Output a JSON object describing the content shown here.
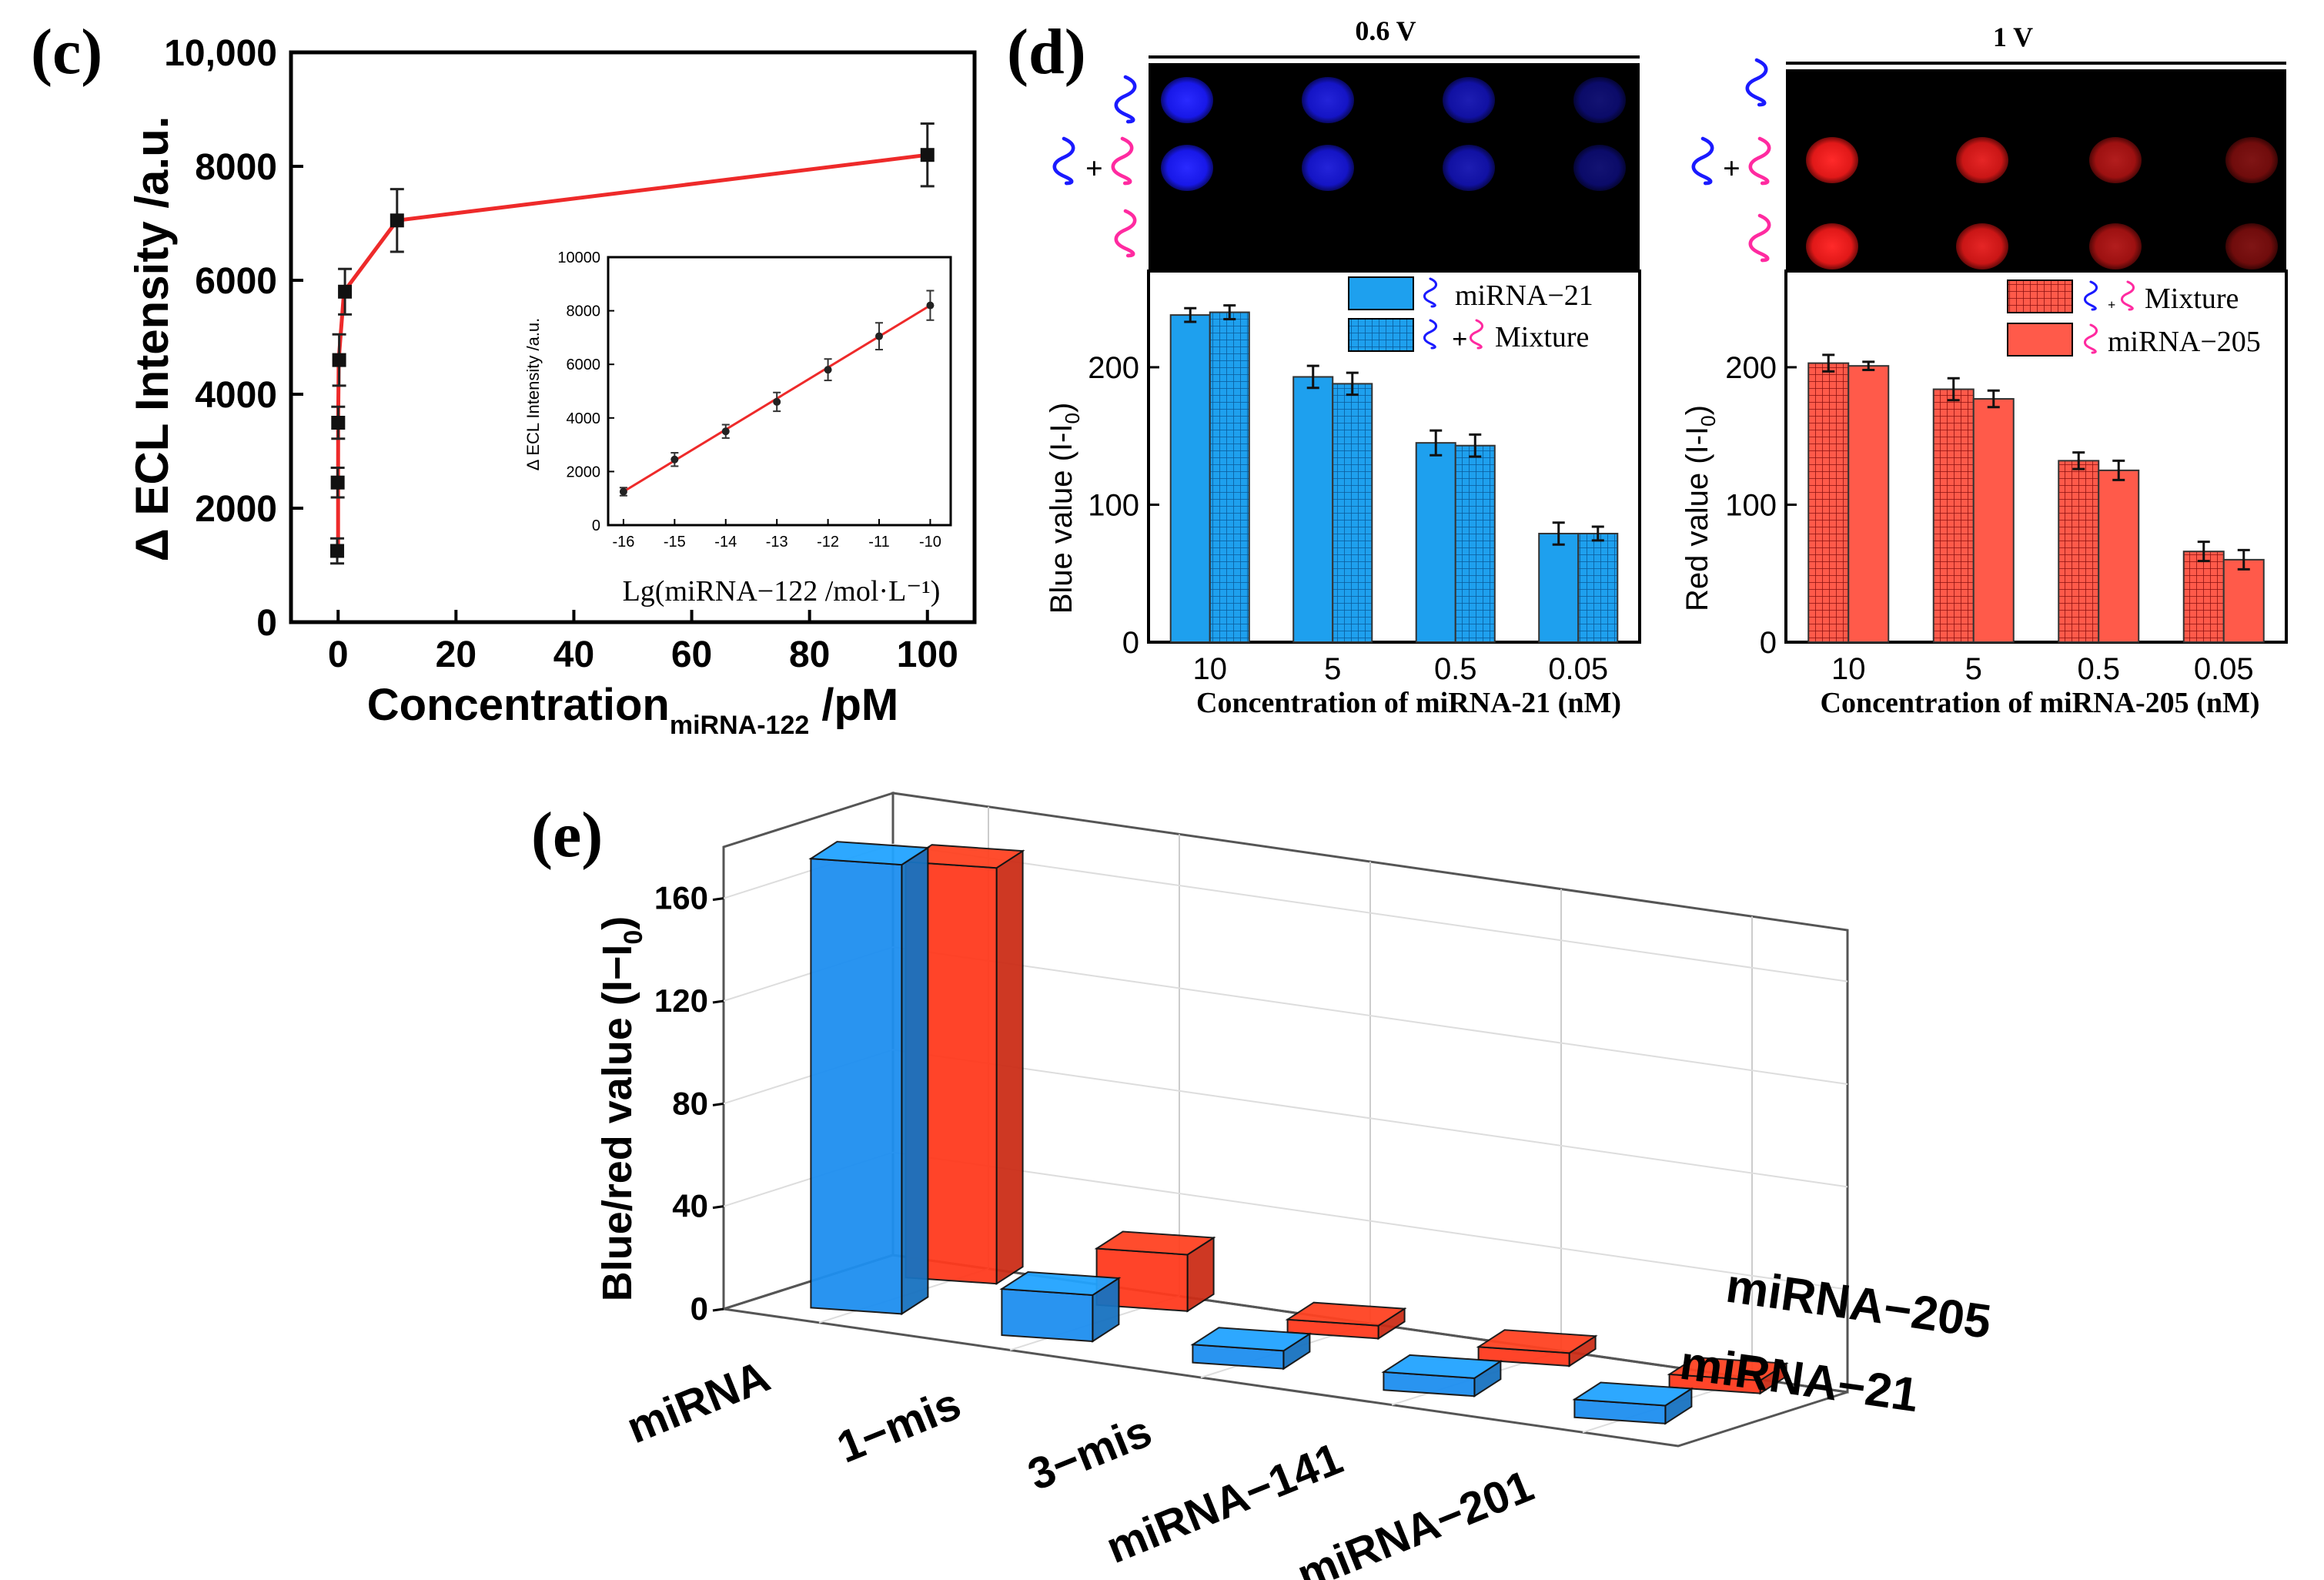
{
  "panel_c": {
    "label": "(c)",
    "main": {
      "ylabel": "Δ ECL Intensity /a.u.",
      "xlabel_main": "Concentration",
      "xlabel_sub": "miRNA-122",
      "xlabel_unit": " /pM",
      "yticks": [
        "0",
        "2000",
        "4000",
        "6000",
        "8000",
        "10,000"
      ],
      "xticks": [
        "0",
        "20",
        "40",
        "60",
        "80",
        "100"
      ]
    },
    "inset": {
      "ylabel": "Δ ECL Intensity /a.u.",
      "xlabel": "Lg(miRNA−122 /mol·L⁻¹)",
      "yticks": [
        "0",
        "2000",
        "4000",
        "6000",
        "8000",
        "10000"
      ],
      "xticks": [
        "-16",
        "-15",
        "-14",
        "-13",
        "-12",
        "-11",
        "-10"
      ]
    }
  },
  "panel_d": {
    "label": "(d)",
    "left": {
      "voltage": "0.6 V",
      "ylabel_main": "Blue value (I-I",
      "ylabel_sub": "0",
      "ylabel_end": ")",
      "xlabel": "Concentration of miRNA-21 (nM)",
      "yticks": [
        "0",
        "100",
        "200"
      ],
      "legend": [
        "miRNA−21",
        "Mixture"
      ]
    },
    "right": {
      "voltage": "1 V",
      "ylabel_main": "Red value (I-I",
      "ylabel_sub": "0",
      "ylabel_end": ")",
      "xlabel": "Concentration of miRNA-205 (nM)",
      "yticks": [
        "0",
        "100",
        "200"
      ],
      "legend": [
        "Mixture",
        "miRNA−205"
      ]
    },
    "plus": "+",
    "categories": [
      "10",
      "5",
      "0.5",
      "0.05"
    ]
  },
  "panel_e": {
    "label": "(e)",
    "ylabel_main": "Blue/red value (I−I",
    "ylabel_sub": "0",
    "ylabel_end": ")",
    "zticks": [
      "0",
      "40",
      "80",
      "120",
      "160"
    ],
    "categories": [
      "miRNA",
      "1−mis",
      "3−mis",
      "miRNA−141",
      "miRNA−201"
    ],
    "series_labels": [
      "miRNA−205",
      "miRNA−21"
    ]
  },
  "colors": {
    "red_line": "#ee2a2a",
    "blue_bar": "#1ea0ee",
    "red_bar": "#ff5a4a",
    "blue_3d": "#1e8ff0",
    "red_3d": "#ff3a1e",
    "blue_spot": "#1a1aff",
    "red_spot": "#ff1a1a",
    "blue_strand": "#1a1aff",
    "pink_strand": "#ff2aa0"
  },
  "chart_data": [
    {
      "type": "line",
      "title": "(c)",
      "xlabel": "Concentration miRNA-122 /pM",
      "ylabel": "Δ ECL Intensity /a.u.",
      "xlim": [
        -8,
        108
      ],
      "ylim": [
        0,
        10000
      ],
      "x": [
        0.0001,
        0.001,
        0.01,
        0.1,
        1,
        10,
        100
      ],
      "values": [
        1250,
        2450,
        3500,
        4600,
        5800,
        7050,
        8200
      ],
      "errors": [
        220,
        260,
        280,
        450,
        400,
        550,
        550
      ]
    },
    {
      "type": "scatter",
      "title": "inset",
      "xlabel": "Lg(miRNA−122 /mol·L⁻¹)",
      "ylabel": "Δ ECL Intensity /a.u.",
      "xlim": [
        -16.3,
        -9.6
      ],
      "ylim": [
        0,
        10000
      ],
      "x": [
        -16,
        -15,
        -14,
        -13,
        -12,
        -11,
        -10
      ],
      "values": [
        1250,
        2450,
        3500,
        4600,
        5800,
        7050,
        8200
      ],
      "errors": [
        150,
        250,
        250,
        350,
        400,
        500,
        550
      ],
      "fit": {
        "x": [
          -16,
          -10
        ],
        "y": [
          1250,
          8200
        ]
      }
    },
    {
      "type": "bar",
      "title": "0.6 V",
      "xlabel": "Concentration of miRNA-21 (nM)",
      "ylabel": "Blue value (I-I0)",
      "ylim": [
        0,
        270
      ],
      "categories": [
        "10",
        "5",
        "0.5",
        "0.05"
      ],
      "series": [
        {
          "name": "miRNA−21",
          "values": [
            238,
            193,
            145,
            79
          ],
          "errors": [
            5,
            8,
            9,
            8
          ]
        },
        {
          "name": "Mixture",
          "values": [
            240,
            188,
            143,
            79
          ],
          "errors": [
            5,
            8,
            8,
            5
          ]
        }
      ]
    },
    {
      "type": "bar",
      "title": "1 V",
      "xlabel": "Concentration of miRNA-205 (nM)",
      "ylabel": "Red value (I-I0)",
      "ylim": [
        0,
        270
      ],
      "categories": [
        "10",
        "5",
        "0.5",
        "0.05"
      ],
      "series": [
        {
          "name": "Mixture",
          "values": [
            203,
            184,
            132,
            66
          ],
          "errors": [
            6,
            8,
            6,
            7
          ]
        },
        {
          "name": "miRNA−205",
          "values": [
            201,
            177,
            125,
            60
          ],
          "errors": [
            3,
            6,
            7,
            7
          ]
        }
      ]
    },
    {
      "type": "bar",
      "title": "(e)",
      "ylabel": "Blue/red value (I−I0)",
      "ylim": [
        0,
        180
      ],
      "categories": [
        "miRNA",
        "1−mis",
        "3−mis",
        "miRNA−141",
        "miRNA−201"
      ],
      "series": [
        {
          "name": "miRNA−21",
          "values": [
            175,
            18,
            7,
            7,
            7
          ]
        },
        {
          "name": "miRNA−205",
          "values": [
            162,
            22,
            5,
            5,
            5
          ]
        }
      ]
    }
  ]
}
